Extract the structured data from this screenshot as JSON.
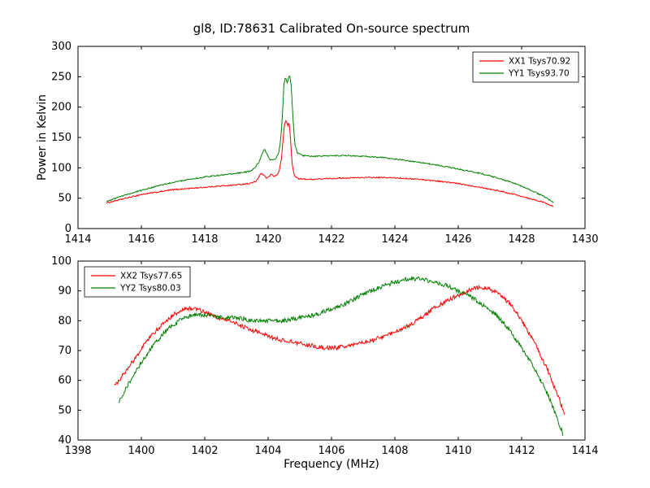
{
  "figure": {
    "background": "#ffffff",
    "axis_color": "#000000"
  },
  "chart_data": [
    {
      "type": "line",
      "title": "gl8, ID:78631 Calibrated On-source spectrum",
      "xlabel": "",
      "ylabel": "Power in Kelvin",
      "xlim": [
        1414,
        1430
      ],
      "ylim": [
        0,
        300
      ],
      "xticks": [
        1414,
        1416,
        1418,
        1420,
        1422,
        1424,
        1426,
        1428,
        1430
      ],
      "yticks": [
        0,
        50,
        100,
        150,
        200,
        250,
        300
      ],
      "grid": false,
      "legend_position": "upper right",
      "series": [
        {
          "name": "XX1 Tsys70.92",
          "color": "#ff0000",
          "noise": 1.0,
          "points": [
            [
              1414.9,
              42
            ],
            [
              1415.2,
              46
            ],
            [
              1415.6,
              51
            ],
            [
              1416.0,
              56
            ],
            [
              1416.5,
              60
            ],
            [
              1417.0,
              64
            ],
            [
              1417.5,
              66
            ],
            [
              1418.0,
              68
            ],
            [
              1418.5,
              70
            ],
            [
              1419.0,
              72
            ],
            [
              1419.4,
              74
            ],
            [
              1419.6,
              77
            ],
            [
              1419.7,
              84
            ],
            [
              1419.78,
              91
            ],
            [
              1419.85,
              88
            ],
            [
              1419.95,
              83
            ],
            [
              1420.05,
              86
            ],
            [
              1420.1,
              90
            ],
            [
              1420.18,
              86
            ],
            [
              1420.28,
              88
            ],
            [
              1420.35,
              95
            ],
            [
              1420.42,
              115
            ],
            [
              1420.48,
              150
            ],
            [
              1420.52,
              173
            ],
            [
              1420.57,
              178
            ],
            [
              1420.62,
              169
            ],
            [
              1420.66,
              176
            ],
            [
              1420.7,
              152
            ],
            [
              1420.76,
              105
            ],
            [
              1420.82,
              88
            ],
            [
              1420.95,
              82
            ],
            [
              1421.3,
              81
            ],
            [
              1421.8,
              82
            ],
            [
              1422.3,
              83
            ],
            [
              1423.0,
              84
            ],
            [
              1423.6,
              84
            ],
            [
              1424.2,
              83
            ],
            [
              1424.8,
              81
            ],
            [
              1425.4,
              78
            ],
            [
              1426.0,
              74
            ],
            [
              1426.6,
              69
            ],
            [
              1427.2,
              63
            ],
            [
              1427.8,
              56
            ],
            [
              1428.3,
              49
            ],
            [
              1428.7,
              43
            ],
            [
              1429.0,
              36
            ]
          ]
        },
        {
          "name": "YY1 Tsys93.70",
          "color": "#008000",
          "noise": 1.0,
          "points": [
            [
              1414.9,
              45
            ],
            [
              1415.2,
              50
            ],
            [
              1415.6,
              57
            ],
            [
              1416.0,
              63
            ],
            [
              1416.5,
              70
            ],
            [
              1417.0,
              76
            ],
            [
              1417.5,
              81
            ],
            [
              1418.0,
              85
            ],
            [
              1418.5,
              88
            ],
            [
              1419.0,
              91
            ],
            [
              1419.3,
              93
            ],
            [
              1419.5,
              96
            ],
            [
              1419.62,
              103
            ],
            [
              1419.72,
              110
            ],
            [
              1419.8,
              122
            ],
            [
              1419.88,
              131
            ],
            [
              1419.95,
              124
            ],
            [
              1420.05,
              113
            ],
            [
              1420.15,
              113
            ],
            [
              1420.25,
              116
            ],
            [
              1420.33,
              124
            ],
            [
              1420.4,
              148
            ],
            [
              1420.46,
              195
            ],
            [
              1420.5,
              238
            ],
            [
              1420.55,
              250
            ],
            [
              1420.6,
              240
            ],
            [
              1420.64,
              247
            ],
            [
              1420.68,
              252
            ],
            [
              1420.73,
              235
            ],
            [
              1420.78,
              185
            ],
            [
              1420.84,
              140
            ],
            [
              1420.92,
              125
            ],
            [
              1421.1,
              120
            ],
            [
              1421.5,
              119
            ],
            [
              1422.0,
              120
            ],
            [
              1422.5,
              120
            ],
            [
              1423.0,
              119
            ],
            [
              1423.6,
              117
            ],
            [
              1424.2,
              113
            ],
            [
              1424.8,
              109
            ],
            [
              1425.4,
              104
            ],
            [
              1426.0,
              98
            ],
            [
              1426.6,
              92
            ],
            [
              1427.2,
              84
            ],
            [
              1427.8,
              74
            ],
            [
              1428.3,
              63
            ],
            [
              1428.7,
              53
            ],
            [
              1429.0,
              43
            ]
          ]
        }
      ]
    },
    {
      "type": "line",
      "title": "",
      "xlabel": "Frequency (MHz)",
      "ylabel": "",
      "xlim": [
        1398,
        1414
      ],
      "ylim": [
        40,
        100
      ],
      "xticks": [
        1398,
        1400,
        1402,
        1404,
        1406,
        1408,
        1410,
        1412,
        1414
      ],
      "yticks": [
        40,
        50,
        60,
        70,
        80,
        90,
        100
      ],
      "grid": false,
      "legend_position": "upper left",
      "series": [
        {
          "name": "XX2 Tsys77.65",
          "color": "#ff0000",
          "noise": 0.7,
          "points": [
            [
              1399.15,
              58
            ],
            [
              1399.5,
              63
            ],
            [
              1399.9,
              69
            ],
            [
              1400.3,
              75
            ],
            [
              1400.7,
              79
            ],
            [
              1401.0,
              82
            ],
            [
              1401.35,
              84
            ],
            [
              1401.7,
              84
            ],
            [
              1402.0,
              83
            ],
            [
              1402.4,
              81
            ],
            [
              1402.8,
              80
            ],
            [
              1403.2,
              78
            ],
            [
              1403.7,
              76
            ],
            [
              1404.2,
              74
            ],
            [
              1404.7,
              73
            ],
            [
              1405.2,
              72
            ],
            [
              1405.7,
              71
            ],
            [
              1406.2,
              71
            ],
            [
              1406.7,
              72
            ],
            [
              1407.2,
              73
            ],
            [
              1407.7,
              75
            ],
            [
              1408.2,
              77
            ],
            [
              1408.7,
              80
            ],
            [
              1409.2,
              84
            ],
            [
              1409.7,
              87
            ],
            [
              1410.1,
              89
            ],
            [
              1410.5,
              91
            ],
            [
              1410.9,
              91
            ],
            [
              1411.3,
              89
            ],
            [
              1411.7,
              85
            ],
            [
              1412.0,
              80
            ],
            [
              1412.4,
              73
            ],
            [
              1412.8,
              64
            ],
            [
              1413.1,
              56
            ],
            [
              1413.35,
              49
            ]
          ]
        },
        {
          "name": "YY2 Tsys80.03",
          "color": "#008000",
          "noise": 0.7,
          "points": [
            [
              1399.3,
              53
            ],
            [
              1399.6,
              59
            ],
            [
              1400.0,
              66
            ],
            [
              1400.4,
              72
            ],
            [
              1400.8,
              77
            ],
            [
              1401.2,
              80
            ],
            [
              1401.6,
              82
            ],
            [
              1402.0,
              82
            ],
            [
              1402.5,
              81
            ],
            [
              1403.0,
              81
            ],
            [
              1403.5,
              80
            ],
            [
              1404.0,
              80
            ],
            [
              1404.5,
              80
            ],
            [
              1405.0,
              81
            ],
            [
              1405.5,
              82
            ],
            [
              1406.0,
              84
            ],
            [
              1406.5,
              86
            ],
            [
              1407.0,
              89
            ],
            [
              1407.5,
              91
            ],
            [
              1408.0,
              93
            ],
            [
              1408.4,
              94
            ],
            [
              1408.8,
              94
            ],
            [
              1409.2,
              93
            ],
            [
              1409.6,
              92
            ],
            [
              1410.0,
              90
            ],
            [
              1410.4,
              88
            ],
            [
              1410.8,
              85
            ],
            [
              1411.2,
              82
            ],
            [
              1411.6,
              77
            ],
            [
              1412.0,
              71
            ],
            [
              1412.4,
              64
            ],
            [
              1412.8,
              56
            ],
            [
              1413.1,
              48
            ],
            [
              1413.3,
              42
            ]
          ]
        }
      ]
    }
  ]
}
